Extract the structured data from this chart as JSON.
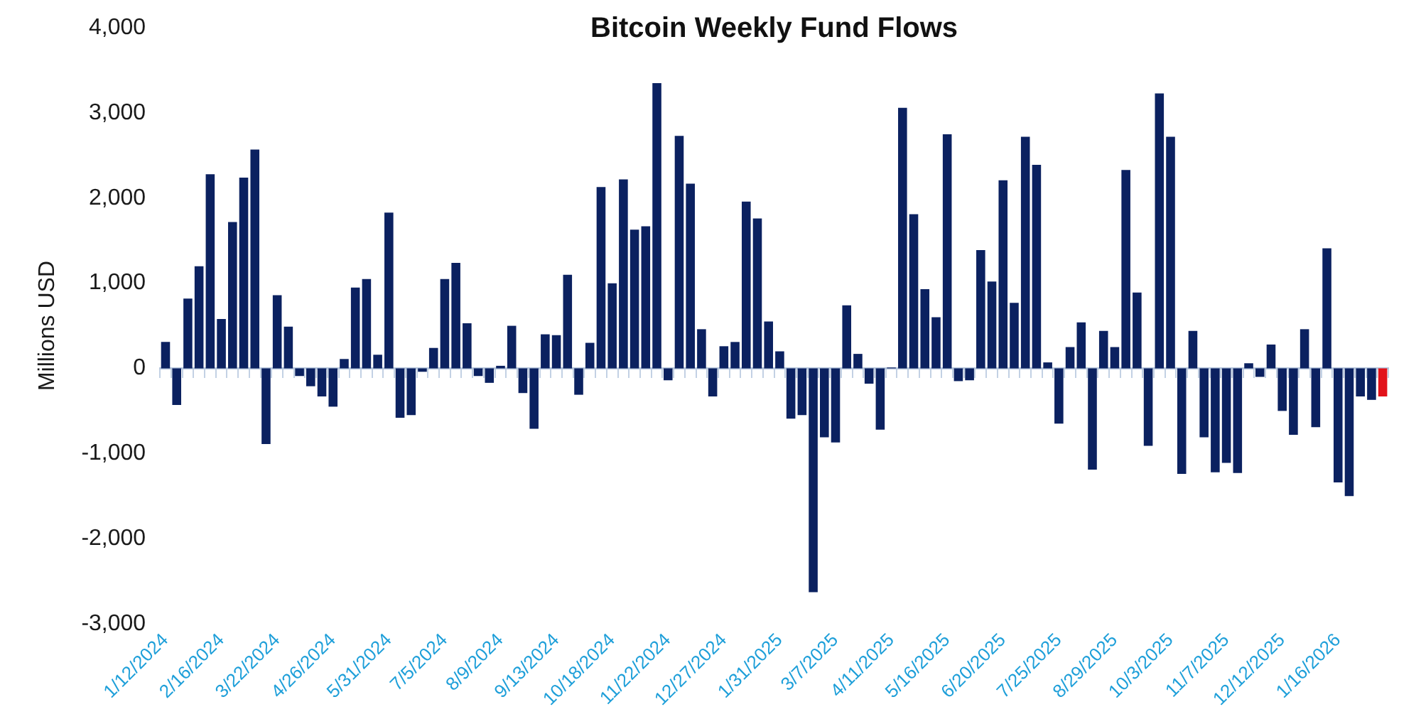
{
  "chart_data": {
    "type": "bar",
    "title": "Bitcoin Weekly Fund Flows",
    "ylabel": "Millions USD",
    "categories": [
      "1/12/2024",
      null,
      null,
      null,
      null,
      "2/16/2024",
      null,
      null,
      null,
      null,
      "3/22/2024",
      null,
      null,
      null,
      null,
      "4/26/2024",
      null,
      null,
      null,
      null,
      "5/31/2024",
      null,
      null,
      null,
      null,
      "7/5/2024",
      null,
      null,
      null,
      null,
      "8/9/2024",
      null,
      null,
      null,
      null,
      "9/13/2024",
      null,
      null,
      null,
      null,
      "10/18/2024",
      null,
      null,
      null,
      null,
      "11/22/2024",
      null,
      null,
      null,
      null,
      "12/27/2024",
      null,
      null,
      null,
      null,
      "1/31/2025",
      null,
      null,
      null,
      null,
      "3/7/2025",
      null,
      null,
      null,
      null,
      "4/11/2025",
      null,
      null,
      null,
      null,
      "5/16/2025",
      null,
      null,
      null,
      null,
      "6/20/2025",
      null,
      null,
      null,
      null,
      "7/25/2025",
      null,
      null,
      null,
      null,
      "8/29/2025",
      null,
      null,
      null,
      null,
      "10/3/2025",
      null,
      null,
      null,
      null,
      "11/7/2025",
      null,
      null,
      null,
      null,
      "12/12/2025",
      null,
      null,
      null,
      null,
      "1/16/2026",
      null,
      null,
      null,
      null
    ],
    "values": [
      310,
      -430,
      820,
      1200,
      2280,
      580,
      1720,
      2240,
      2570,
      -890,
      860,
      490,
      -90,
      -210,
      -330,
      -450,
      110,
      950,
      1050,
      160,
      1830,
      -580,
      -550,
      -40,
      240,
      1050,
      1240,
      530,
      -90,
      -170,
      30,
      500,
      -290,
      -710,
      400,
      390,
      1100,
      -310,
      300,
      2130,
      1000,
      2220,
      1630,
      1670,
      3350,
      -140,
      2730,
      2170,
      460,
      -330,
      260,
      310,
      1960,
      1760,
      550,
      200,
      -590,
      -550,
      -2630,
      -810,
      -870,
      740,
      170,
      -180,
      -720,
      10,
      3060,
      1810,
      930,
      600,
      2750,
      -150,
      -140,
      1390,
      1020,
      2210,
      770,
      2720,
      2390,
      70,
      -650,
      250,
      540,
      -1190,
      440,
      250,
      2330,
      890,
      -910,
      3230,
      2720,
      -1240,
      440,
      -810,
      -1220,
      -1110,
      -1230,
      60,
      -100,
      280,
      -500,
      -780,
      460,
      -690,
      1410,
      -1340,
      -1500,
      -330,
      -370,
      -330
    ],
    "colors": [
      "#0b2160",
      "#0b2160",
      "#0b2160",
      "#0b2160",
      "#0b2160",
      "#0b2160",
      "#0b2160",
      "#0b2160",
      "#0b2160",
      "#0b2160",
      "#0b2160",
      "#0b2160",
      "#0b2160",
      "#0b2160",
      "#0b2160",
      "#0b2160",
      "#0b2160",
      "#0b2160",
      "#0b2160",
      "#0b2160",
      "#0b2160",
      "#0b2160",
      "#0b2160",
      "#0b2160",
      "#0b2160",
      "#0b2160",
      "#0b2160",
      "#0b2160",
      "#0b2160",
      "#0b2160",
      "#0b2160",
      "#0b2160",
      "#0b2160",
      "#0b2160",
      "#0b2160",
      "#0b2160",
      "#0b2160",
      "#0b2160",
      "#0b2160",
      "#0b2160",
      "#0b2160",
      "#0b2160",
      "#0b2160",
      "#0b2160",
      "#0b2160",
      "#0b2160",
      "#0b2160",
      "#0b2160",
      "#0b2160",
      "#0b2160",
      "#0b2160",
      "#0b2160",
      "#0b2160",
      "#0b2160",
      "#0b2160",
      "#0b2160",
      "#0b2160",
      "#0b2160",
      "#0b2160",
      "#0b2160",
      "#0b2160",
      "#0b2160",
      "#0b2160",
      "#0b2160",
      "#0b2160",
      "#0b2160",
      "#0b2160",
      "#0b2160",
      "#0b2160",
      "#0b2160",
      "#0b2160",
      "#0b2160",
      "#0b2160",
      "#0b2160",
      "#0b2160",
      "#0b2160",
      "#0b2160",
      "#0b2160",
      "#0b2160",
      "#0b2160",
      "#0b2160",
      "#0b2160",
      "#0b2160",
      "#0b2160",
      "#0b2160",
      "#0b2160",
      "#0b2160",
      "#0b2160",
      "#0b2160",
      "#0b2160",
      "#0b2160",
      "#0b2160",
      "#0b2160",
      "#0b2160",
      "#0b2160",
      "#0b2160",
      "#0b2160",
      "#0b2160",
      "#0b2160",
      "#0b2160",
      "#0b2160",
      "#0b2160",
      "#0b2160",
      "#0b2160",
      "#0b2160",
      "#0b2160",
      "#0b2160",
      "#0b2160",
      "#0b2160",
      "#e2121a"
    ],
    "ylim": [
      -3000,
      4000
    ],
    "yticks": [
      {
        "value": -3000,
        "label": "-3,000"
      },
      {
        "value": -2000,
        "label": "-2,000"
      },
      {
        "value": -1000,
        "label": "-1,000"
      },
      {
        "value": 0,
        "label": "0"
      },
      {
        "value": 1000,
        "label": "1,000"
      },
      {
        "value": 2000,
        "label": "2,000"
      },
      {
        "value": 3000,
        "label": "3,000"
      },
      {
        "value": 4000,
        "label": "4,000"
      }
    ]
  }
}
